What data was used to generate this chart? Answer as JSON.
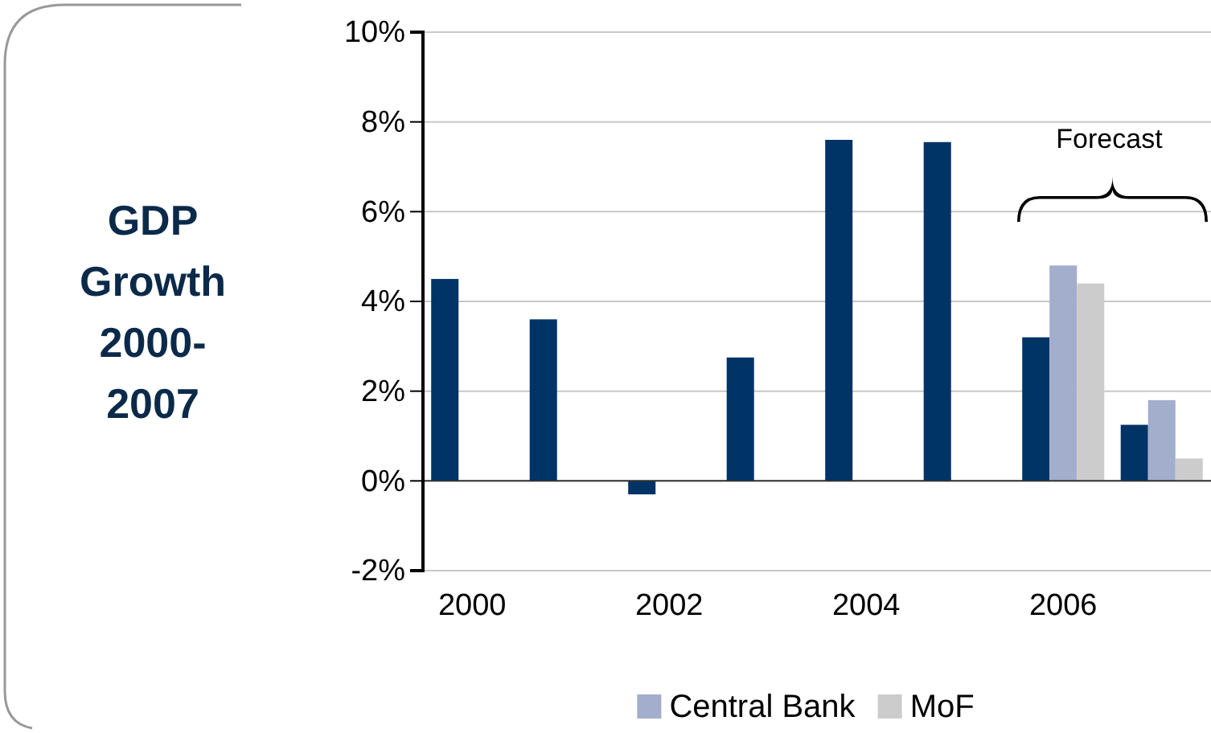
{
  "chart_data": {
    "type": "bar",
    "title": "GDP Growth 2000-2007",
    "categories": [
      "2000",
      null,
      "2002",
      null,
      "2004",
      null,
      "2006",
      null
    ],
    "series": [
      {
        "color": "#003366",
        "values": [
          4.5,
          3.6,
          -0.3,
          2.75,
          7.6,
          7.55,
          3.2,
          1.25
        ]
      },
      {
        "name": "Central Bank",
        "color": "#a3adcc",
        "values": [
          null,
          null,
          null,
          null,
          null,
          null,
          4.8,
          1.8
        ]
      },
      {
        "name": "MoF",
        "color": "#cccccc",
        "values": [
          null,
          null,
          null,
          null,
          null,
          null,
          4.4,
          0.5
        ]
      }
    ],
    "ylim": [
      -2,
      10
    ],
    "yticks": [
      {
        "value": -2,
        "label": "-2%"
      },
      {
        "value": 0,
        "label": "0%"
      },
      {
        "value": 2,
        "label": "2%"
      },
      {
        "value": 4,
        "label": "4%"
      },
      {
        "value": 6,
        "label": "6%"
      },
      {
        "value": 8,
        "label": "8%"
      },
      {
        "value": 10,
        "label": "10%"
      }
    ],
    "grid": "y",
    "legend": "bottom",
    "annotations": [
      "Forecast"
    ]
  }
}
